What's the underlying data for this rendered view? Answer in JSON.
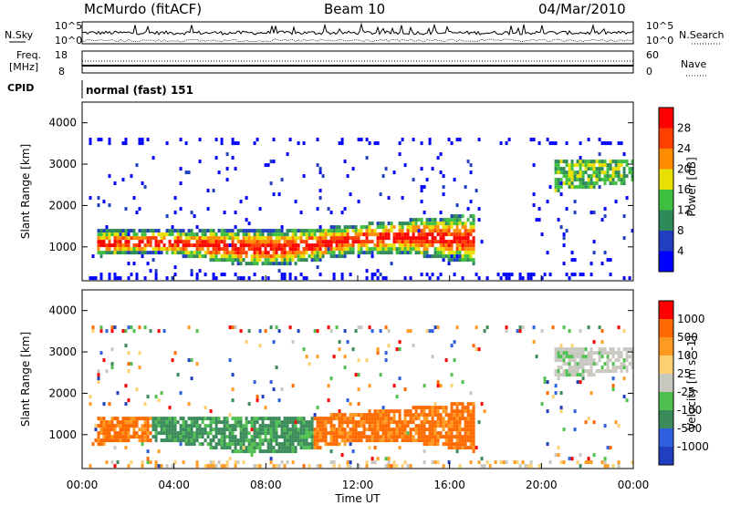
{
  "header": {
    "station": "McMurdo (fitACF)",
    "beam": "Beam 10",
    "date": "04/Mar/2010"
  },
  "strips": {
    "nsky_label": "N.Sky",
    "nsearch_label": "N.Search",
    "nsky_ticks": [
      "10^5",
      "10^0"
    ],
    "nsearch_ticks": [
      "10^5",
      "10^0"
    ],
    "freq_label": "Freq.",
    "freq_unit": "[MHz]",
    "freq_ticks": [
      "18",
      "8"
    ],
    "nave_label": "Nave",
    "nave_ticks": [
      "60",
      "0"
    ],
    "cpid_label": "CPID",
    "cpid_value": "normal (fast) 151"
  },
  "chart_data": [
    {
      "type": "heatmap",
      "title": "",
      "xlabel": "Time UT",
      "ylabel": "Slant Range [km]",
      "xlim": [
        0,
        24
      ],
      "ylim": [
        180,
        4500
      ],
      "x_ticks": [
        "00:00",
        "04:00",
        "08:00",
        "12:00",
        "16:00",
        "20:00",
        "00:00"
      ],
      "y_ticks": [
        "1000",
        "2000",
        "3000",
        "4000"
      ],
      "colorbar": {
        "label": "Power [dB]",
        "tick_labels": [
          "4",
          "8",
          "12",
          "16",
          "20",
          "24",
          "28"
        ],
        "colors": [
          "#0000ff",
          "#1f3fbf",
          "#2f8a5a",
          "#3fbf3f",
          "#e8e000",
          "#ff8c00",
          "#ff4000",
          "#ff0000"
        ]
      },
      "features": [
        {
          "time_start": 0.5,
          "time_end": 17.0,
          "range_low": 600,
          "range_high": 1700,
          "note_value_db": "8-28"
        },
        {
          "time_start": 20.5,
          "time_end": 24.0,
          "range_low": 2300,
          "range_high": 3100,
          "note_value_db": "8-20"
        }
      ]
    },
    {
      "type": "heatmap",
      "title": "",
      "xlabel": "Time UT",
      "ylabel": "Slant Range [km]",
      "xlim": [
        0,
        24
      ],
      "ylim": [
        180,
        4500
      ],
      "x_ticks": [
        "00:00",
        "04:00",
        "08:00",
        "12:00",
        "16:00",
        "20:00",
        "00:00"
      ],
      "y_ticks": [
        "1000",
        "2000",
        "3000",
        "4000"
      ],
      "colorbar": {
        "label": "Velocity [m s^-1]",
        "tick_labels": [
          "1000",
          "500",
          "100",
          "25",
          "-25",
          "-100",
          "-500",
          "-1000"
        ],
        "colors": [
          "#1f3fbf",
          "#2f5fdf",
          "#3a8a5a",
          "#4fc04f",
          "#c8c8c0",
          "#ffd070",
          "#ff9a20",
          "#ff6a00",
          "#ff0000"
        ]
      },
      "features": [
        {
          "time_start": 0.5,
          "time_end": 17.0,
          "range_low": 700,
          "range_high": 1700,
          "note_value": "-100 to 100"
        },
        {
          "time_start": 20.5,
          "time_end": 24.0,
          "range_low": 2300,
          "range_high": 3100,
          "note_value": "-25 to 25"
        }
      ]
    }
  ]
}
